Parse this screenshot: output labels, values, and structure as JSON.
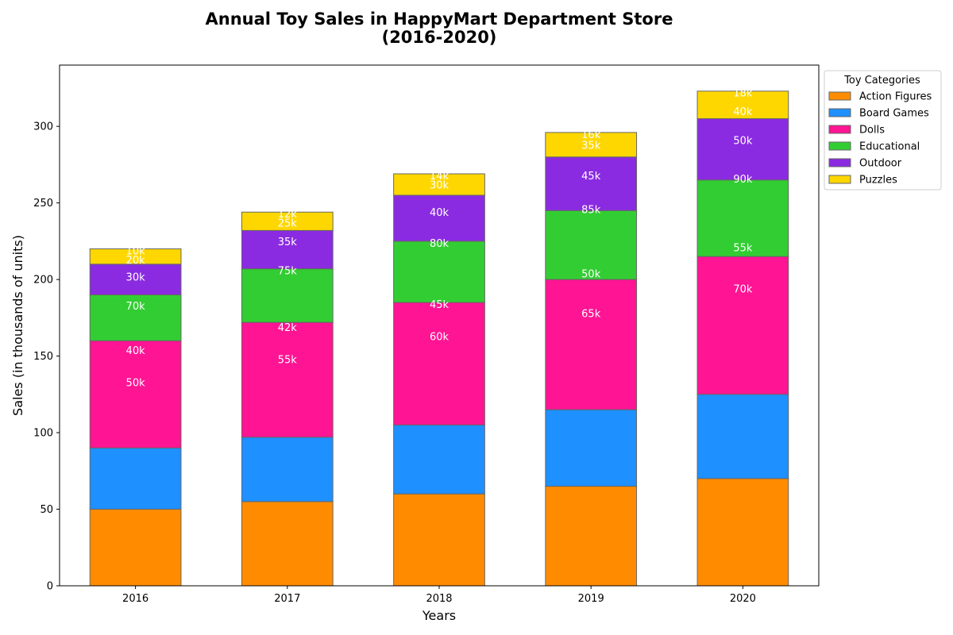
{
  "chart_data": {
    "type": "bar",
    "stacked": true,
    "title_lines": [
      "Annual Toy Sales in HappyMart Department Store",
      "(2016-2020)"
    ],
    "xlabel": "Years",
    "ylabel": "Sales (in thousands of units)",
    "ylim": [
      0,
      340
    ],
    "yticks": [
      0,
      50,
      100,
      150,
      200,
      250,
      300
    ],
    "categories": [
      "2016",
      "2017",
      "2018",
      "2019",
      "2020"
    ],
    "legend": {
      "title": "Toy Categories",
      "placement": "outside-top-right"
    },
    "grid": false,
    "series": [
      {
        "name": "Action Figures",
        "color": "#FF8C00",
        "values": [
          50,
          55,
          60,
          65,
          70
        ]
      },
      {
        "name": "Board Games",
        "color": "#1E90FF",
        "values": [
          40,
          42,
          45,
          50,
          55
        ]
      },
      {
        "name": "Dolls",
        "color": "#FF1493",
        "values": [
          70,
          75,
          80,
          85,
          90
        ]
      },
      {
        "name": "Educational",
        "color": "#32CD32",
        "values": [
          30,
          35,
          40,
          45,
          50
        ]
      },
      {
        "name": "Outdoor",
        "color": "#8A2BE2",
        "values": [
          20,
          25,
          30,
          35,
          40
        ]
      },
      {
        "name": "Puzzles",
        "color": "#FFD700",
        "values": [
          10,
          12,
          14,
          16,
          18
        ]
      }
    ],
    "annotations": [
      {
        "category": "2016",
        "y": 133,
        "text": "50k"
      },
      {
        "category": "2016",
        "y": 154,
        "text": "40k"
      },
      {
        "category": "2016",
        "y": 183,
        "text": "70k"
      },
      {
        "category": "2016",
        "y": 202,
        "text": "30k"
      },
      {
        "category": "2016",
        "y": 213,
        "text": "20k"
      },
      {
        "category": "2016",
        "y": 219,
        "text": "10k"
      },
      {
        "category": "2017",
        "y": 148,
        "text": "55k"
      },
      {
        "category": "2017",
        "y": 169,
        "text": "42k"
      },
      {
        "category": "2017",
        "y": 206,
        "text": "75k"
      },
      {
        "category": "2017",
        "y": 225,
        "text": "35k"
      },
      {
        "category": "2017",
        "y": 237,
        "text": "25k"
      },
      {
        "category": "2017",
        "y": 243,
        "text": "12k"
      },
      {
        "category": "2018",
        "y": 163,
        "text": "60k"
      },
      {
        "category": "2018",
        "y": 184,
        "text": "45k"
      },
      {
        "category": "2018",
        "y": 224,
        "text": "80k"
      },
      {
        "category": "2018",
        "y": 244,
        "text": "40k"
      },
      {
        "category": "2018",
        "y": 262,
        "text": "30k"
      },
      {
        "category": "2018",
        "y": 268,
        "text": "14k"
      },
      {
        "category": "2019",
        "y": 178,
        "text": "65k"
      },
      {
        "category": "2019",
        "y": 204,
        "text": "50k"
      },
      {
        "category": "2019",
        "y": 246,
        "text": "85k"
      },
      {
        "category": "2019",
        "y": 268,
        "text": "45k"
      },
      {
        "category": "2019",
        "y": 288,
        "text": "35k"
      },
      {
        "category": "2019",
        "y": 295,
        "text": "16k"
      },
      {
        "category": "2020",
        "y": 194,
        "text": "70k"
      },
      {
        "category": "2020",
        "y": 221,
        "text": "55k"
      },
      {
        "category": "2020",
        "y": 266,
        "text": "90k"
      },
      {
        "category": "2020",
        "y": 291,
        "text": "50k"
      },
      {
        "category": "2020",
        "y": 310,
        "text": "40k"
      },
      {
        "category": "2020",
        "y": 322,
        "text": "18k"
      }
    ]
  }
}
